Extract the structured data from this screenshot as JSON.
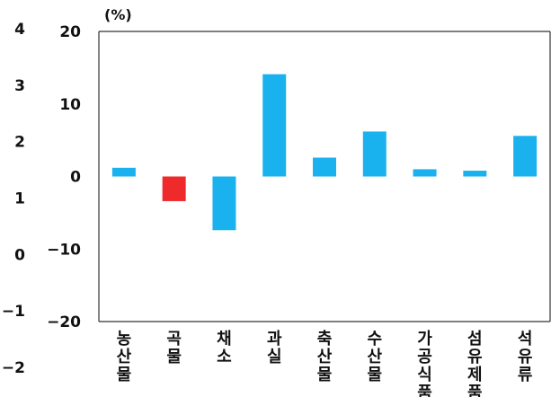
{
  "chart_data": {
    "type": "bar",
    "unit_label": "(%)",
    "categories": [
      "농산물",
      "곡물",
      "채소",
      "과실",
      "축산물",
      "수산물",
      "가공식품",
      "섬유제품",
      "석유류"
    ],
    "values": [
      1.2,
      -3.4,
      -7.4,
      14.1,
      2.6,
      6.2,
      1.0,
      0.8,
      5.6
    ],
    "colors": [
      "#1ab2ee",
      "#ee2a2a",
      "#1ab2ee",
      "#1ab2ee",
      "#1ab2ee",
      "#1ab2ee",
      "#1ab2ee",
      "#1ab2ee",
      "#1ab2ee"
    ],
    "ylim": [
      -20,
      20
    ],
    "yticks": [
      "20",
      "10",
      "0",
      "−10",
      "−20"
    ],
    "secondary_ylim": [
      -2,
      4
    ],
    "secondary_yticks": [
      "4",
      "3",
      "2",
      "1",
      "0",
      "−1",
      "−2"
    ]
  }
}
